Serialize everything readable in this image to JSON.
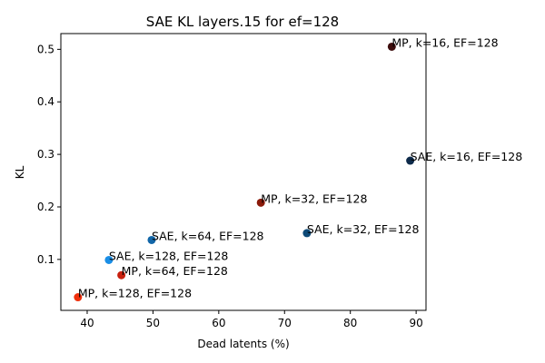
{
  "chart_data": {
    "type": "scatter",
    "title": "SAE KL layers.15 for ef=128",
    "xlabel": "Dead latents (%)",
    "ylabel": "KL",
    "xlim": [
      36,
      91.5
    ],
    "ylim": [
      0.003,
      0.53
    ],
    "xticks": [
      40,
      50,
      60,
      70,
      80,
      90
    ],
    "yticks": [
      0.1,
      0.2,
      0.3,
      0.4,
      0.5
    ],
    "grid": false,
    "points": [
      {
        "label": "MP, k=16, EF=128",
        "x": 86.3,
        "y": 0.505,
        "color": "#3d0d0d"
      },
      {
        "label": "SAE, k=16, EF=128",
        "x": 89.1,
        "y": 0.288,
        "color": "#0d2a4a"
      },
      {
        "label": "MP, k=32, EF=128",
        "x": 66.4,
        "y": 0.208,
        "color": "#8b1a0a"
      },
      {
        "label": "SAE, k=32, EF=128",
        "x": 73.4,
        "y": 0.15,
        "color": "#0d4a78"
      },
      {
        "label": "SAE, k=64, EF=128",
        "x": 49.8,
        "y": 0.137,
        "color": "#1266a8"
      },
      {
        "label": "SAE, k=128, EF=128",
        "x": 43.3,
        "y": 0.099,
        "color": "#1a8ee6"
      },
      {
        "label": "MP, k=64, EF=128",
        "x": 45.2,
        "y": 0.07,
        "color": "#c8200e"
      },
      {
        "label": "MP, k=128, EF=128",
        "x": 38.6,
        "y": 0.028,
        "color": "#f0300c"
      }
    ]
  }
}
